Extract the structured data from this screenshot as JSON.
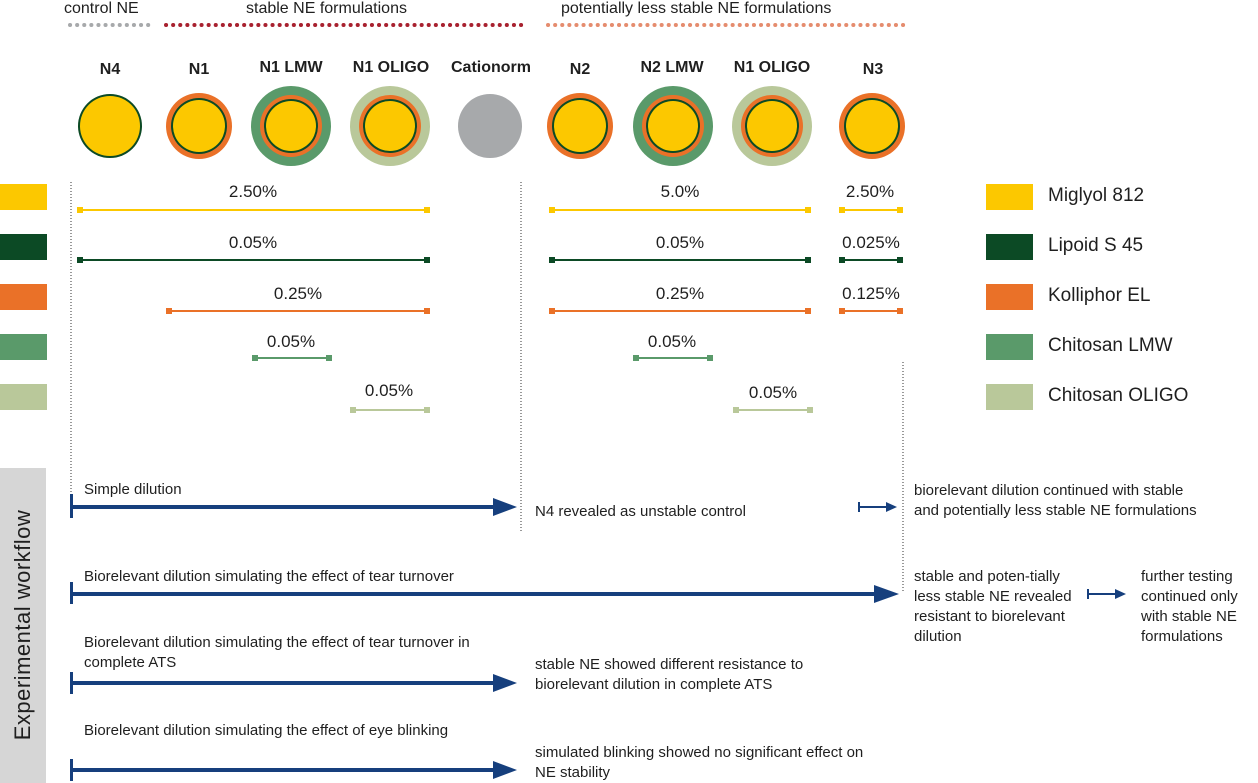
{
  "groups": {
    "control": "control NE",
    "stable": "stable NE formulations",
    "less_stable": "potentially less stable NE formulations"
  },
  "formulations": [
    {
      "name": "N4",
      "layers": [
        "miglyol",
        "lipoid"
      ]
    },
    {
      "name": "N1",
      "layers": [
        "miglyol",
        "lipoid",
        "kolliphor"
      ]
    },
    {
      "name": "N1 LMW",
      "layers": [
        "miglyol",
        "lipoid",
        "kolliphor",
        "chitosan_lmw"
      ]
    },
    {
      "name": "N1 OLIGO",
      "layers": [
        "miglyol",
        "lipoid",
        "kolliphor",
        "chitosan_oligo"
      ]
    },
    {
      "name": "Cationorm",
      "layers": [
        "grey"
      ]
    },
    {
      "name": "N2",
      "layers": [
        "miglyol",
        "lipoid",
        "kolliphor"
      ]
    },
    {
      "name": "N2 LMW",
      "layers": [
        "miglyol",
        "lipoid",
        "kolliphor",
        "chitosan_lmw"
      ]
    },
    {
      "name": "N1 OLIGO",
      "layers": [
        "miglyol",
        "lipoid",
        "kolliphor",
        "chitosan_oligo"
      ]
    },
    {
      "name": "N3",
      "layers": [
        "miglyol",
        "lipoid",
        "kolliphor"
      ]
    }
  ],
  "colors": {
    "miglyol": "#fcc800",
    "lipoid": "#0c4a25",
    "kolliphor": "#ea7128",
    "chitosan_lmw": "#5a9a6a",
    "chitosan_oligo": "#b9c89a",
    "grey": "#a7a9ab",
    "arrow": "#163f7d",
    "dots_control": "#a7a9ab",
    "dots_stable": "#a8212f",
    "dots_less": "#e58c6e"
  },
  "concentrations": {
    "miglyol": [
      "2.50%",
      "5.0%",
      "2.50%"
    ],
    "lipoid": [
      "0.05%",
      "0.05%",
      "0.025%"
    ],
    "kolliphor": [
      "0.25%",
      "0.25%",
      "0.125%"
    ],
    "chitosan_lmw": [
      "0.05%",
      "0.05%"
    ],
    "chitosan_oligo": [
      "0.05%",
      "0.05%"
    ]
  },
  "legend": [
    {
      "key": "miglyol",
      "label": "Miglyol 812"
    },
    {
      "key": "lipoid",
      "label": "Lipoid S 45"
    },
    {
      "key": "kolliphor",
      "label": "Kolliphor EL"
    },
    {
      "key": "chitosan_lmw",
      "label": "Chitosan LMW"
    },
    {
      "key": "chitosan_oligo",
      "label": "Chitosan OLIGO"
    }
  ],
  "workflow": {
    "title": "Experimental workflow",
    "step1": {
      "label": "Simple dilution",
      "result": "N4 revealed as unstable control",
      "next": "biorelevant dilution continued with stable and potentially less stable NE formulations"
    },
    "step2": {
      "label": "Biorelevant dilution simulating the effect of tear turnover",
      "result": "stable and poten-tially less stable NE revealed resistant to biorelevant dilution",
      "next": "further testing continued only with stable NE formulations"
    },
    "step3": {
      "label": "Biorelevant dilution simulating the effect of tear turnover in complete ATS",
      "result": "stable NE showed different resistance to biorelevant dilution in complete ATS"
    },
    "step4": {
      "label": "Biorelevant dilution simulating the effect of eye blinking",
      "result": "simulated blinking showed no significant effect on NE stability"
    }
  }
}
